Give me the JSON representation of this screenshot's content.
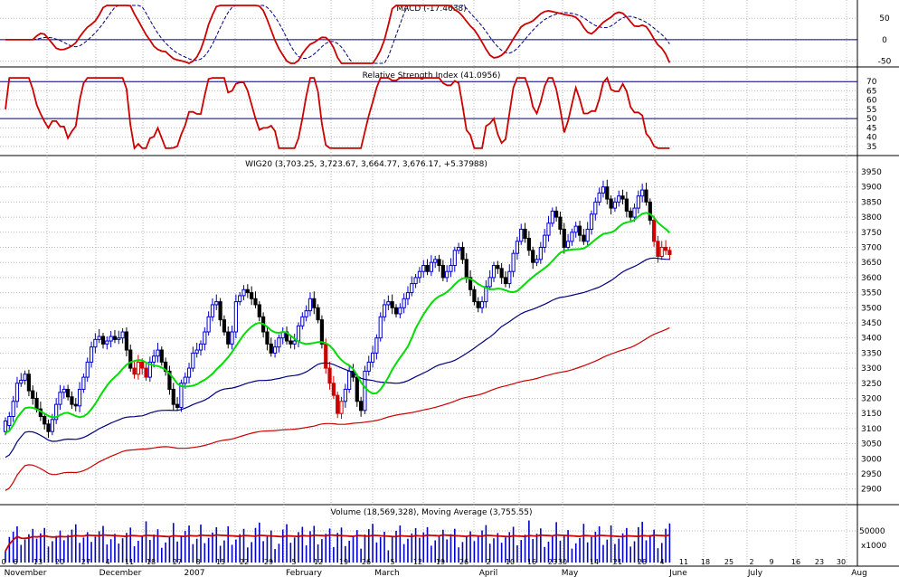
{
  "chart_data": {
    "type": "candlestick",
    "panels": {
      "macd": {
        "title": "MACD (-17.4638)",
        "ylim": [
          -55,
          80
        ],
        "yticks": [
          50,
          0,
          -50
        ],
        "guide_lines": [
          0
        ]
      },
      "rsi": {
        "title": "Relative Strength Index (41.0956)",
        "ylim": [
          32,
          74
        ],
        "yticks": [
          70,
          65,
          60,
          55,
          50,
          45,
          40,
          35
        ],
        "guide_lines": [
          70,
          50
        ]
      },
      "price": {
        "title": "WIG20 (3,703.25, 3,723.67, 3,664.77, 3,676.17, +5.37988)",
        "ylim": [
          2860,
          3980
        ],
        "yticks": [
          3950,
          3900,
          3850,
          3800,
          3750,
          3700,
          3650,
          3600,
          3550,
          3500,
          3450,
          3400,
          3350,
          3300,
          3250,
          3200,
          3150,
          3100,
          3050,
          3000,
          2950,
          2900
        ],
        "ma_colors": {
          "short": "#00dd00",
          "medium": "#000080",
          "long": "#cc0000"
        }
      },
      "volume": {
        "title": "Volume (18,569,328), Moving Average (3,755.55)",
        "ylim": [
          0,
          80000
        ],
        "yticks": [
          50000
        ],
        "unit_label": "x1000"
      }
    },
    "x_axis": {
      "day_labels": [
        "0",
        "6",
        "13",
        "20",
        "27",
        "4",
        "11",
        "18",
        "27",
        "8",
        "15",
        "22",
        "29",
        "5",
        "12",
        "19",
        "26",
        "5",
        "12",
        "19",
        "26",
        "2",
        "10",
        "16",
        "23",
        "30",
        "14",
        "21",
        "28",
        "4",
        "11",
        "18",
        "25",
        "2",
        "9",
        "16",
        "23",
        "30"
      ],
      "month_labels": [
        "November",
        "December",
        "2007",
        "February",
        "March",
        "April",
        "May",
        "June",
        "July",
        "Aug"
      ]
    },
    "price_series": {
      "x_start": 0,
      "x_step": 4.32,
      "points": [
        [
          3090,
          3125
        ],
        [
          3110,
          3140
        ],
        [
          3140,
          3190
        ],
        [
          3190,
          3250
        ],
        [
          3250,
          3260
        ],
        [
          3260,
          3280
        ],
        [
          3280,
          3225
        ],
        [
          3225,
          3200
        ],
        [
          3200,
          3165
        ],
        [
          3165,
          3140
        ],
        [
          3140,
          3115
        ],
        [
          3115,
          3090
        ],
        [
          3090,
          3130
        ],
        [
          3130,
          3180
        ],
        [
          3180,
          3220
        ],
        [
          3220,
          3230
        ],
        [
          3230,
          3205
        ],
        [
          3205,
          3180
        ],
        [
          3180,
          3175
        ],
        [
          3175,
          3230
        ],
        [
          3230,
          3270
        ],
        [
          3270,
          3320
        ],
        [
          3320,
          3370
        ],
        [
          3370,
          3395
        ],
        [
          3395,
          3405
        ],
        [
          3405,
          3380
        ],
        [
          3380,
          3390
        ],
        [
          3390,
          3405
        ],
        [
          3405,
          3395
        ],
        [
          3395,
          3400
        ],
        [
          3400,
          3420
        ],
        [
          3420,
          3360
        ],
        [
          3360,
          3300
        ],
        [
          3300,
          3280
        ],
        [
          3280,
          3320
        ],
        [
          3320,
          3300
        ],
        [
          3300,
          3270
        ],
        [
          3270,
          3320
        ],
        [
          3320,
          3340
        ],
        [
          3340,
          3360
        ],
        [
          3360,
          3320
        ],
        [
          3320,
          3290
        ],
        [
          3290,
          3230
        ],
        [
          3230,
          3180
        ],
        [
          3180,
          3170
        ],
        [
          3170,
          3250
        ],
        [
          3250,
          3270
        ],
        [
          3270,
          3300
        ],
        [
          3300,
          3350
        ],
        [
          3350,
          3360
        ],
        [
          3360,
          3380
        ],
        [
          3380,
          3420
        ],
        [
          3420,
          3470
        ],
        [
          3470,
          3510
        ],
        [
          3510,
          3520
        ],
        [
          3520,
          3460
        ],
        [
          3460,
          3420
        ],
        [
          3420,
          3380
        ],
        [
          3380,
          3420
        ],
        [
          3420,
          3520
        ],
        [
          3520,
          3540
        ],
        [
          3540,
          3560
        ],
        [
          3560,
          3550
        ],
        [
          3550,
          3530
        ],
        [
          3530,
          3510
        ],
        [
          3510,
          3470
        ],
        [
          3470,
          3420
        ],
        [
          3420,
          3380
        ],
        [
          3380,
          3350
        ],
        [
          3350,
          3370
        ],
        [
          3370,
          3400
        ],
        [
          3400,
          3420
        ],
        [
          3420,
          3390
        ],
        [
          3390,
          3380
        ],
        [
          3380,
          3390
        ],
        [
          3390,
          3440
        ],
        [
          3440,
          3470
        ],
        [
          3470,
          3490
        ],
        [
          3490,
          3530
        ],
        [
          3530,
          3500
        ],
        [
          3500,
          3460
        ],
        [
          3460,
          3380
        ],
        [
          3380,
          3300
        ],
        [
          3300,
          3250
        ],
        [
          3250,
          3210
        ],
        [
          3210,
          3150
        ],
        [
          3150,
          3190
        ],
        [
          3190,
          3230
        ],
        [
          3230,
          3290
        ],
        [
          3290,
          3270
        ],
        [
          3270,
          3190
        ],
        [
          3190,
          3160
        ],
        [
          3160,
          3290
        ],
        [
          3290,
          3320
        ],
        [
          3320,
          3350
        ],
        [
          3350,
          3400
        ],
        [
          3400,
          3470
        ],
        [
          3470,
          3510
        ],
        [
          3510,
          3520
        ],
        [
          3520,
          3500
        ],
        [
          3500,
          3480
        ],
        [
          3480,
          3500
        ],
        [
          3500,
          3530
        ],
        [
          3530,
          3550
        ],
        [
          3550,
          3580
        ],
        [
          3580,
          3600
        ],
        [
          3600,
          3620
        ],
        [
          3620,
          3640
        ],
        [
          3640,
          3620
        ],
        [
          3620,
          3650
        ],
        [
          3650,
          3660
        ],
        [
          3660,
          3640
        ],
        [
          3640,
          3600
        ],
        [
          3600,
          3620
        ],
        [
          3620,
          3640
        ],
        [
          3640,
          3690
        ],
        [
          3690,
          3700
        ],
        [
          3700,
          3660
        ],
        [
          3660,
          3600
        ],
        [
          3600,
          3560
        ],
        [
          3560,
          3520
        ],
        [
          3520,
          3500
        ],
        [
          3500,
          3520
        ],
        [
          3520,
          3570
        ],
        [
          3570,
          3600
        ],
        [
          3600,
          3640
        ],
        [
          3640,
          3630
        ],
        [
          3630,
          3600
        ],
        [
          3600,
          3580
        ],
        [
          3580,
          3620
        ],
        [
          3620,
          3680
        ],
        [
          3680,
          3720
        ],
        [
          3720,
          3760
        ],
        [
          3760,
          3730
        ],
        [
          3730,
          3690
        ],
        [
          3690,
          3650
        ],
        [
          3650,
          3660
        ],
        [
          3660,
          3700
        ],
        [
          3700,
          3740
        ],
        [
          3740,
          3780
        ],
        [
          3780,
          3820
        ],
        [
          3820,
          3800
        ],
        [
          3800,
          3760
        ],
        [
          3760,
          3700
        ],
        [
          3700,
          3720
        ],
        [
          3720,
          3750
        ],
        [
          3750,
          3770
        ],
        [
          3770,
          3740
        ],
        [
          3740,
          3720
        ],
        [
          3720,
          3760
        ],
        [
          3760,
          3810
        ],
        [
          3810,
          3850
        ],
        [
          3850,
          3880
        ],
        [
          3880,
          3900
        ],
        [
          3900,
          3860
        ],
        [
          3860,
          3830
        ],
        [
          3830,
          3850
        ],
        [
          3850,
          3870
        ],
        [
          3870,
          3860
        ],
        [
          3860,
          3820
        ],
        [
          3820,
          3800
        ],
        [
          3800,
          3830
        ],
        [
          3830,
          3870
        ],
        [
          3870,
          3890
        ],
        [
          3890,
          3850
        ],
        [
          3850,
          3790
        ],
        [
          3790,
          3720
        ],
        [
          3720,
          3670
        ],
        [
          3670,
          3700
        ],
        [
          3700,
          3690
        ],
        [
          3690,
          3676
        ]
      ]
    }
  }
}
